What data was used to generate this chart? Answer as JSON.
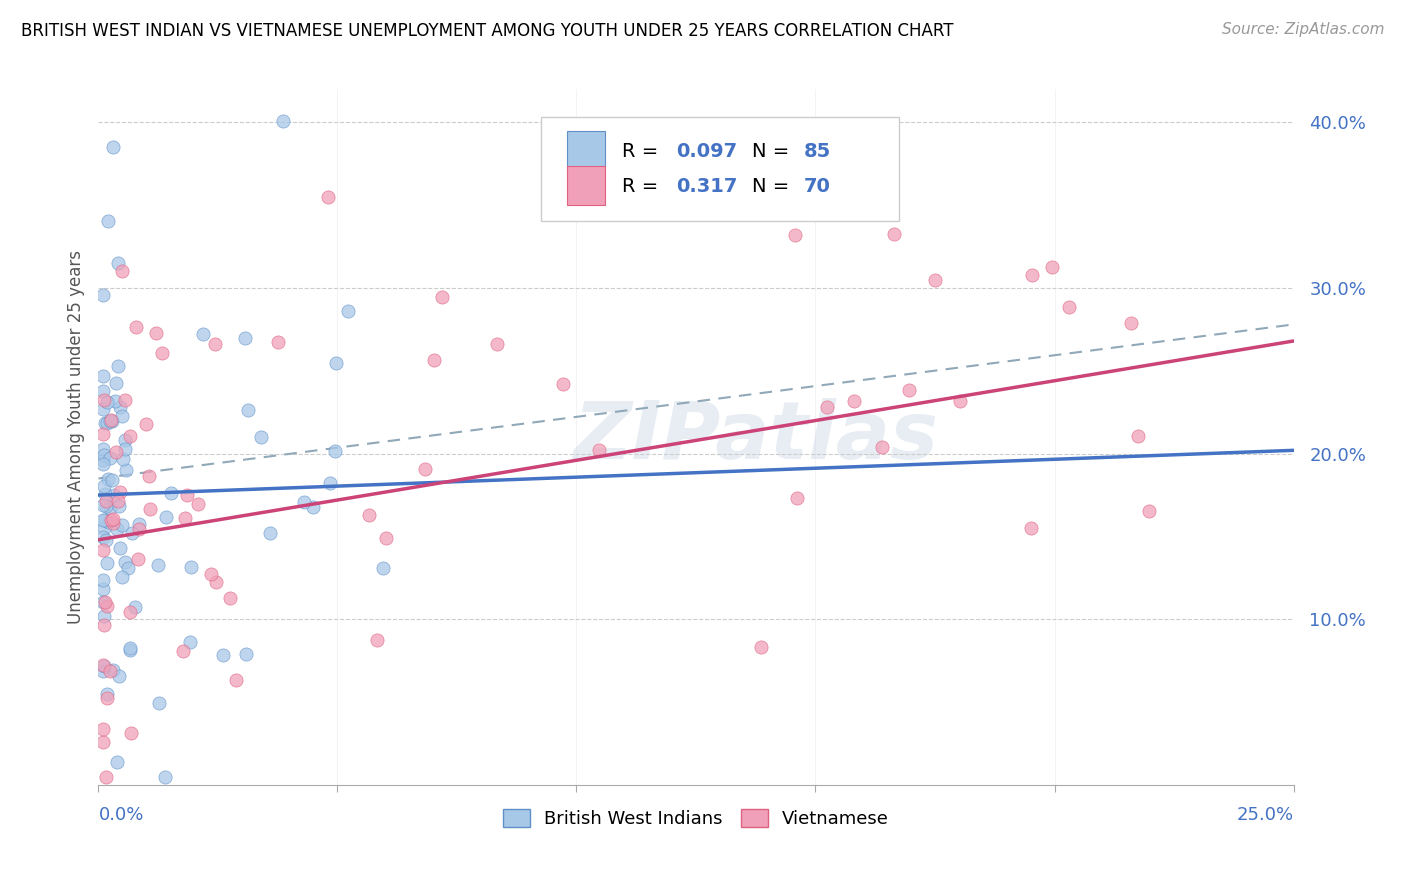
{
  "title": "BRITISH WEST INDIAN VS VIETNAMESE UNEMPLOYMENT AMONG YOUTH UNDER 25 YEARS CORRELATION CHART",
  "source": "Source: ZipAtlas.com",
  "ylabel": "Unemployment Among Youth under 25 years",
  "xlim": [
    0.0,
    0.25
  ],
  "ylim": [
    0.0,
    0.42
  ],
  "ytick_vals": [
    0.0,
    0.1,
    0.2,
    0.3,
    0.4
  ],
  "ytick_labels": [
    "",
    "10.0%",
    "20.0%",
    "30.0%",
    "40.0%"
  ],
  "watermark": "ZIPatlas",
  "legend_label1": "British West Indians",
  "legend_label2": "Vietnamese",
  "color_blue_fill": "#a8c8e8",
  "color_blue_edge": "#6090c8",
  "color_pink_fill": "#f0a0b8",
  "color_pink_edge": "#e06080",
  "color_text_blue": "#4472c4",
  "color_regression_blue": "#4472c4",
  "color_regression_pink": "#c8406080",
  "color_dashed": "#90a8b8",
  "blue_line_x0": 0.0,
  "blue_line_y0": 0.175,
  "blue_line_x1": 0.25,
  "blue_line_y1": 0.202,
  "pink_line_x0": 0.0,
  "pink_line_y0": 0.148,
  "pink_line_x1": 0.25,
  "pink_line_y1": 0.268,
  "dash_line_x0": 0.0,
  "dash_line_y0": 0.185,
  "dash_line_x1": 0.25,
  "dash_line_y1": 0.278
}
